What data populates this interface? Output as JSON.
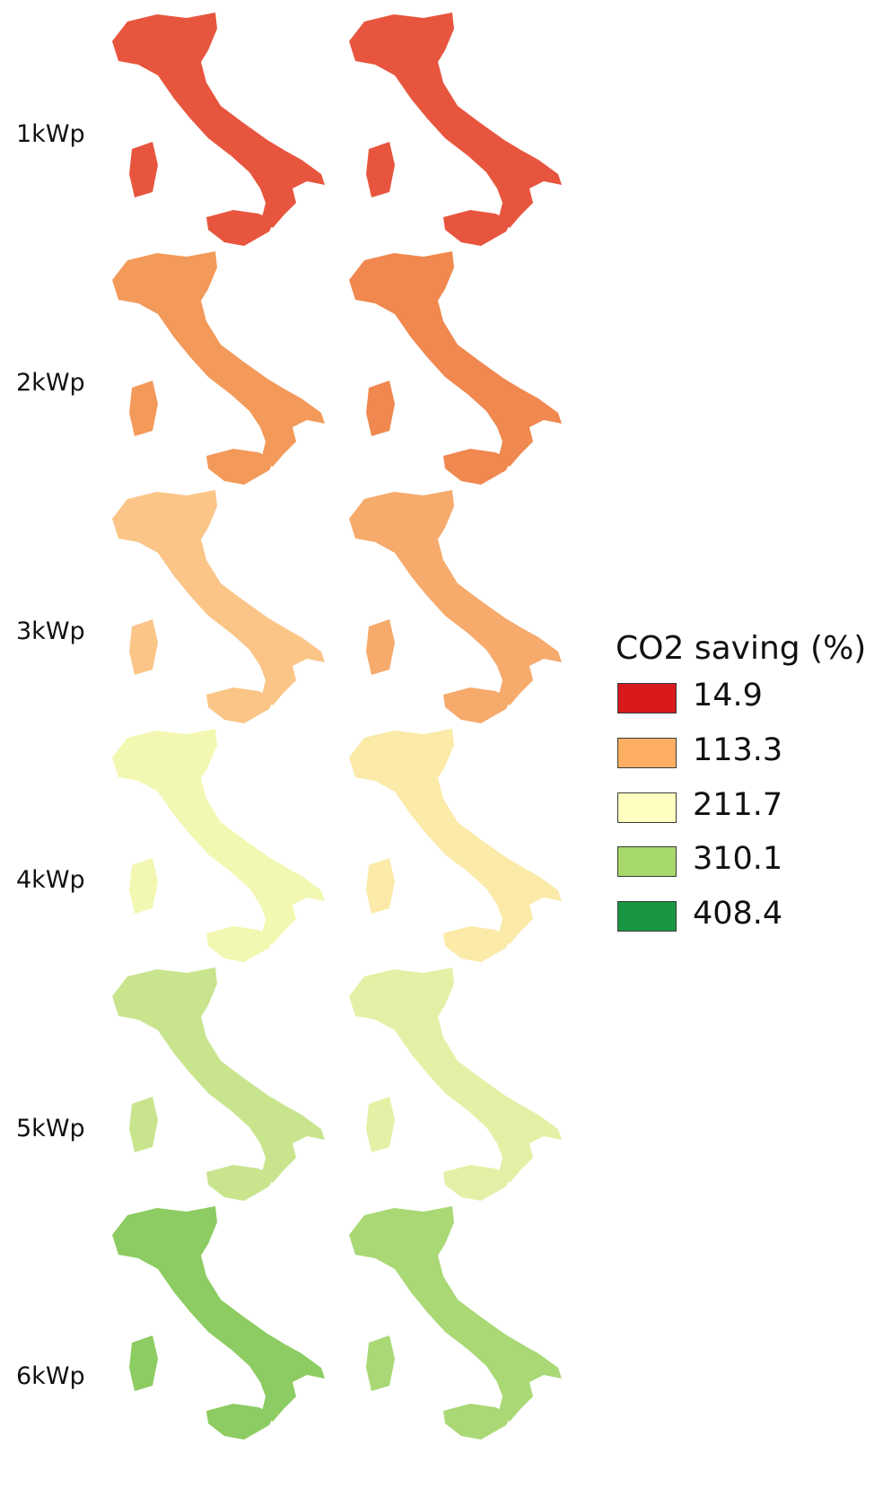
{
  "rows": [
    {
      "label": "1kWp",
      "left_color": "#e8553e",
      "right_color": "#e8553e"
    },
    {
      "label": "2kWp",
      "left_color": "#f39a5a",
      "right_color": "#f0884f"
    },
    {
      "label": "3kWp",
      "left_color": "#fbc588",
      "right_color": "#f6aa6c"
    },
    {
      "label": "4kWp",
      "left_color": "#f2f8b2",
      "right_color": "#fbeaa8"
    },
    {
      "label": "5kWp",
      "left_color": "#c8e58e",
      "right_color": "#e3f1a6"
    },
    {
      "label": "6kWp",
      "left_color": "#8ccc62",
      "right_color": "#a9d875"
    }
  ],
  "legend": {
    "title": "CO2 saving (%)",
    "items": [
      {
        "value": "14.9",
        "color": "#d7191c"
      },
      {
        "value": "113.3",
        "color": "#fdae61"
      },
      {
        "value": "211.7",
        "color": "#ffffbf"
      },
      {
        "value": "310.1",
        "color": "#a6d96a"
      },
      {
        "value": "408.4",
        "color": "#1a9641"
      }
    ]
  }
}
